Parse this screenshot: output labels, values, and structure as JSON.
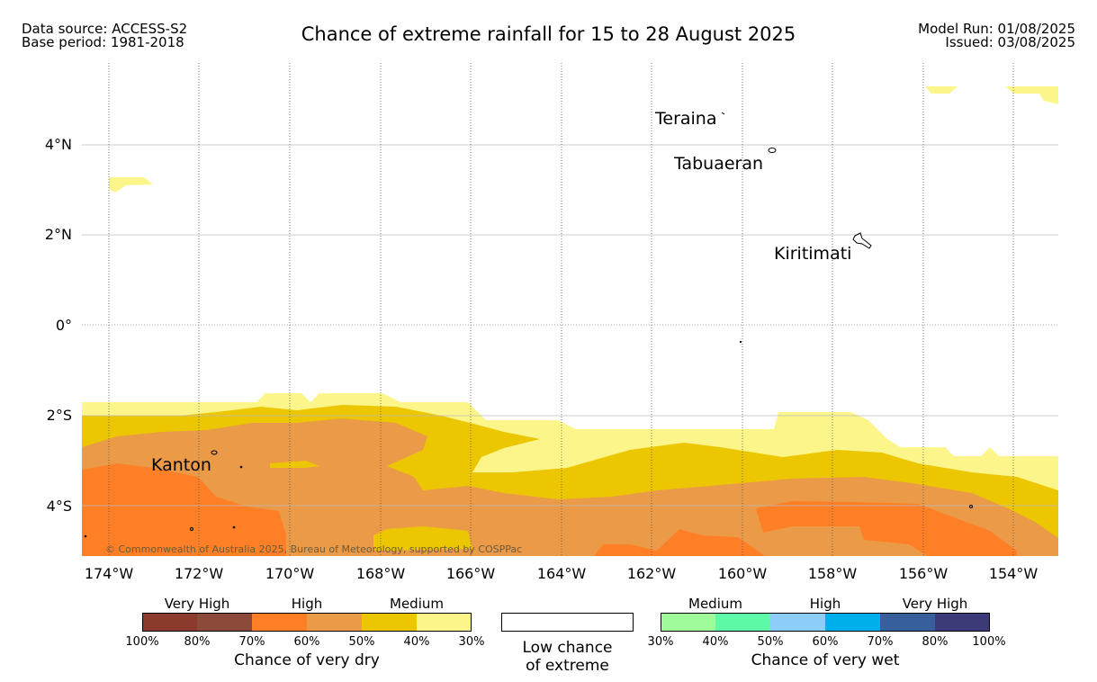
{
  "header": {
    "data_source": "Data source: ACCESS-S2",
    "base_period": "Base period: 1981-2018",
    "title": "Chance of extreme rainfall for 15 to 28 August 2025",
    "model_run": "Model Run: 01/08/2025",
    "issued": "Issued: 03/08/2025"
  },
  "map": {
    "lat_labels": [
      "4°N",
      "2°N",
      "0°",
      "2°S",
      "4°S"
    ],
    "lon_labels": [
      "174°W",
      "172°W",
      "170°W",
      "168°W",
      "166°W",
      "164°W",
      "162°W",
      "160°W",
      "158°W",
      "156°W",
      "154°W"
    ],
    "places": {
      "teraina": "Teraina",
      "tabuaeran": "Tabuaeran",
      "kiritimati": "Kiritimati",
      "kanton": "Kanton"
    },
    "copyright": "© Commonwealth of Australia 2025, Bureau of Meteorology, supported by COSPPac",
    "colors": {
      "very_high_dry": "#8b3a2e",
      "high_dry": "#ff7f27",
      "high_dry_light": "#eb9a48",
      "medium_dry": "#ecc700",
      "medium_dry_light": "#fbf58a"
    }
  },
  "legend": {
    "dry": {
      "tiers": [
        "Very High",
        "High",
        "Medium"
      ],
      "ticks": [
        "100%",
        "80%",
        "70%",
        "60%",
        "50%",
        "40%",
        "30%"
      ],
      "caption": "Chance of very dry",
      "colors": [
        "#8b3a2e",
        "#8b4a3a",
        "#ff7f27",
        "#eb9a48",
        "#ecc700",
        "#fbf58a"
      ]
    },
    "low": {
      "caption_line1": "Low chance",
      "caption_line2": "of extreme"
    },
    "wet": {
      "tiers": [
        "Medium",
        "High",
        "Very High"
      ],
      "ticks": [
        "30%",
        "40%",
        "50%",
        "60%",
        "70%",
        "80%",
        "100%"
      ],
      "caption": "Chance of very wet",
      "colors": [
        "#9efc9b",
        "#5ef9a6",
        "#8ccdf9",
        "#00b0eb",
        "#375f9c",
        "#3d3a78"
      ]
    }
  }
}
